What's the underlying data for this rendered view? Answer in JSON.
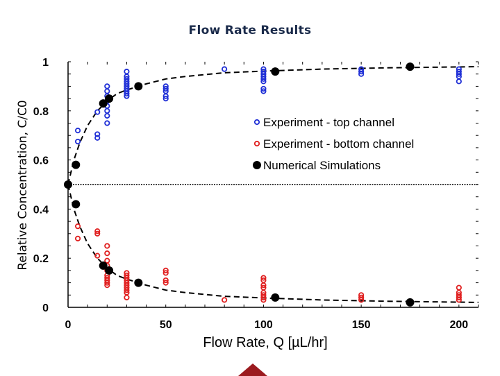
{
  "chart_data": {
    "type": "scatter",
    "title": "Flow Rate Results",
    "xlabel": "Flow Rate, Q  [µL/hr]",
    "ylabel": "Relative Concentration, C/C0",
    "xlim": [
      0,
      210
    ],
    "ylim": [
      0,
      1
    ],
    "x_ticks": [
      0,
      50,
      100,
      150,
      200
    ],
    "y_ticks": [
      0,
      0.2,
      0.4,
      0.6,
      0.8,
      1
    ],
    "x_tick_labels": [
      "0",
      "50",
      "100",
      "150",
      "200"
    ],
    "y_tick_labels": [
      "0",
      "0.2",
      "0.4",
      "0.6",
      "0.8",
      "1"
    ],
    "grid": false,
    "legend_position": "right-middle",
    "reference_line": 0.5,
    "series": [
      {
        "name": "Experiment - top channel",
        "marker": "open-circle",
        "color": "#1f2fd6",
        "x": [
          5,
          5,
          15,
          15,
          15,
          20,
          20,
          20,
          20,
          20,
          20,
          20,
          20,
          30,
          30,
          30,
          30,
          30,
          30,
          30,
          30,
          30,
          30,
          50,
          50,
          50,
          50,
          50,
          80,
          100,
          100,
          100,
          100,
          100,
          100,
          100,
          100,
          150,
          150,
          150,
          200,
          200,
          200,
          200,
          200
        ],
        "y": [
          0.72,
          0.675,
          0.795,
          0.705,
          0.69,
          0.9,
          0.88,
          0.86,
          0.84,
          0.82,
          0.8,
          0.78,
          0.75,
          0.96,
          0.94,
          0.93,
          0.92,
          0.91,
          0.9,
          0.89,
          0.88,
          0.87,
          0.86,
          0.9,
          0.89,
          0.88,
          0.86,
          0.85,
          0.97,
          0.97,
          0.96,
          0.95,
          0.94,
          0.93,
          0.92,
          0.89,
          0.88,
          0.97,
          0.96,
          0.95,
          0.97,
          0.96,
          0.95,
          0.94,
          0.92
        ]
      },
      {
        "name": "Experiment - bottom channel",
        "marker": "open-circle",
        "color": "#e02020",
        "x": [
          5,
          5,
          15,
          15,
          15,
          20,
          20,
          20,
          20,
          20,
          20,
          20,
          20,
          20,
          20,
          30,
          30,
          30,
          30,
          30,
          30,
          30,
          30,
          30,
          30,
          50,
          50,
          50,
          50,
          80,
          100,
          100,
          100,
          100,
          100,
          100,
          100,
          100,
          150,
          150,
          150,
          200,
          200,
          200,
          200,
          200
        ],
        "y": [
          0.33,
          0.28,
          0.31,
          0.3,
          0.21,
          0.25,
          0.22,
          0.19,
          0.17,
          0.15,
          0.13,
          0.12,
          0.11,
          0.1,
          0.09,
          0.14,
          0.13,
          0.12,
          0.11,
          0.1,
          0.09,
          0.08,
          0.07,
          0.06,
          0.04,
          0.15,
          0.14,
          0.11,
          0.1,
          0.03,
          0.12,
          0.11,
          0.09,
          0.08,
          0.06,
          0.05,
          0.04,
          0.03,
          0.05,
          0.04,
          0.03,
          0.08,
          0.06,
          0.05,
          0.04,
          0.03
        ]
      },
      {
        "name": "Numerical Simulations",
        "marker": "filled-circle",
        "color": "#000000",
        "x": [
          0,
          4,
          4,
          18,
          18,
          21,
          21,
          36,
          36,
          106,
          106,
          175,
          175
        ],
        "y": [
          0.5,
          0.58,
          0.42,
          0.83,
          0.17,
          0.85,
          0.15,
          0.9,
          0.1,
          0.96,
          0.04,
          0.98,
          0.02
        ]
      }
    ],
    "fit_curves": [
      {
        "x": [
          0,
          3,
          6,
          10,
          15,
          20,
          25,
          30,
          40,
          50,
          60,
          80,
          100,
          130,
          160,
          190,
          210
        ],
        "y": [
          0.5,
          0.6,
          0.67,
          0.74,
          0.8,
          0.84,
          0.87,
          0.885,
          0.91,
          0.93,
          0.94,
          0.955,
          0.962,
          0.97,
          0.975,
          0.978,
          0.98
        ]
      },
      {
        "x": [
          0,
          3,
          6,
          10,
          15,
          20,
          25,
          30,
          40,
          50,
          60,
          80,
          100,
          130,
          160,
          190,
          210
        ],
        "y": [
          0.5,
          0.4,
          0.33,
          0.26,
          0.2,
          0.16,
          0.13,
          0.115,
          0.09,
          0.07,
          0.06,
          0.045,
          0.038,
          0.03,
          0.025,
          0.022,
          0.02
        ]
      }
    ]
  },
  "colors": {
    "axes": "#000000",
    "title": "#1a2a4a",
    "footer_mark": "#9b1b1f"
  }
}
